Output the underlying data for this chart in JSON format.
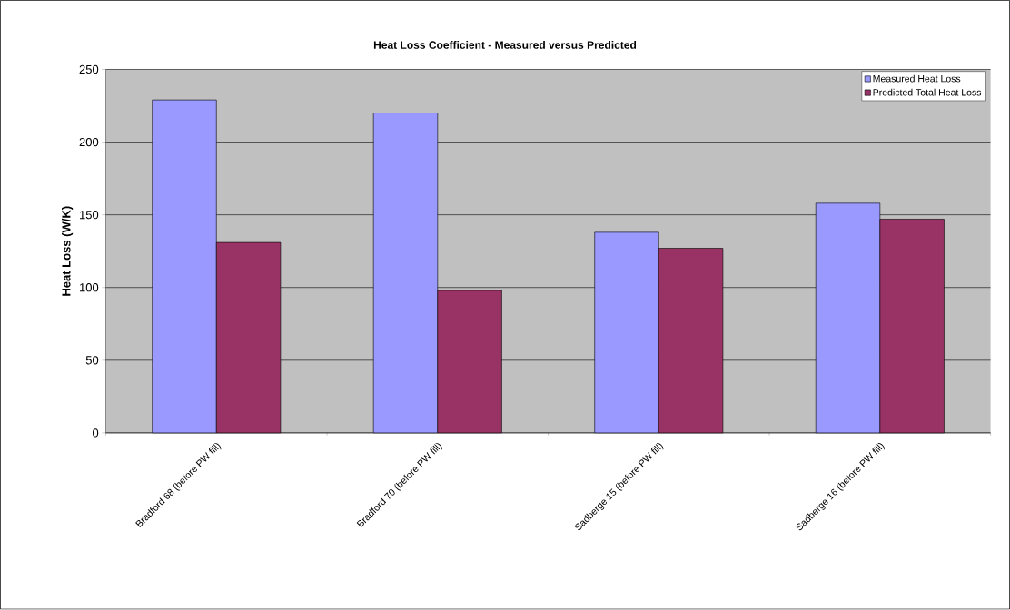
{
  "chart_data": {
    "type": "bar",
    "title": "Heat Loss Coefficient - Measured versus Predicted",
    "ylabel": "Heat Loss (W/K)",
    "categories": [
      "Bradford 68 (before PW fill)",
      "Bradford 70 (before PW fill)",
      "Sadberge 15 (before PW fill)",
      "Sadberge 16 (before PW fill)"
    ],
    "series": [
      {
        "name": "Measured Heat Loss",
        "color": "#9999ff",
        "values": [
          229,
          220,
          138,
          158
        ]
      },
      {
        "name": "Predicted Total Heat Loss",
        "color": "#993366",
        "values": [
          131,
          98,
          127,
          147
        ]
      }
    ],
    "ylim": [
      0,
      250
    ],
    "yticks": [
      0,
      50,
      100,
      150,
      200,
      250
    ],
    "grid": "y",
    "legend": "top right"
  }
}
